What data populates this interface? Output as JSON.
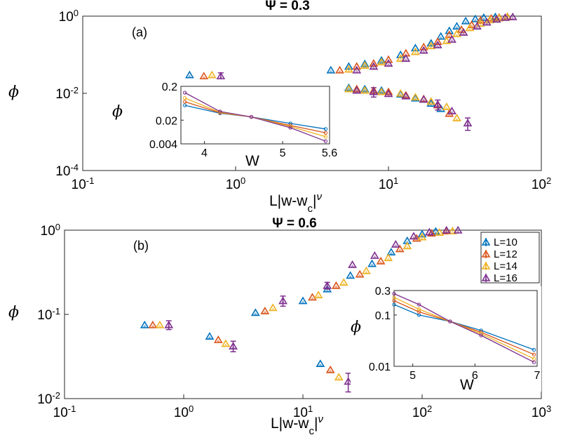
{
  "chart_data": [
    {
      "type": "scatter",
      "panel_label": "(a)",
      "title": "Ψ = 0.3",
      "xscale": "log",
      "yscale": "log",
      "xlim": [
        0.1,
        100
      ],
      "ylim": [
        0.0001,
        1
      ],
      "xticks": [
        "10-1",
        "100",
        "101",
        "102"
      ],
      "yticks": [
        "10-4",
        "10-2",
        "100"
      ],
      "xlabel": "L|w-wc|ν",
      "ylabel": "ϕ",
      "series": [
        {
          "name": "L=10",
          "color": "#0072BD",
          "points": [
            [
              0.5,
              0.03
            ],
            [
              4.2,
              0.04
            ],
            [
              5.5,
              0.05
            ],
            [
              7,
              0.058
            ],
            [
              9,
              0.072
            ],
            [
              12,
              0.1
            ],
            [
              15,
              0.15
            ],
            [
              19,
              0.2
            ],
            [
              22,
              0.3
            ],
            [
              25,
              0.42
            ],
            [
              28,
              0.55
            ],
            [
              32,
              0.75
            ],
            [
              37,
              0.85
            ],
            [
              42,
              0.92
            ],
            [
              50,
              0.96
            ],
            [
              4.2,
              0.016
            ],
            [
              5.5,
              0.014
            ],
            [
              7,
              0.013
            ],
            [
              9,
              0.012
            ],
            [
              12,
              0.0095
            ],
            [
              15,
              0.0075
            ],
            [
              19,
              0.0055
            ],
            [
              22,
              0.004
            ]
          ],
          "errors": []
        },
        {
          "name": "L=12",
          "color": "#D95319",
          "points": [
            [
              0.62,
              0.028
            ],
            [
              4.8,
              0.04
            ],
            [
              6.2,
              0.05
            ],
            [
              8,
              0.06
            ],
            [
              10,
              0.075
            ],
            [
              13,
              0.11
            ],
            [
              17,
              0.16
            ],
            [
              21,
              0.22
            ],
            [
              25,
              0.33
            ],
            [
              30,
              0.45
            ],
            [
              35,
              0.6
            ],
            [
              40,
              0.78
            ],
            [
              47,
              0.88
            ],
            [
              53,
              0.93
            ],
            [
              60,
              0.97
            ],
            [
              4.8,
              0.015
            ],
            [
              6.2,
              0.013
            ],
            [
              8,
              0.012
            ],
            [
              10,
              0.011
            ],
            [
              13,
              0.009
            ],
            [
              17,
              0.0072
            ],
            [
              21,
              0.005
            ],
            [
              25,
              0.003
            ]
          ],
          "errors": []
        },
        {
          "name": "L=14",
          "color": "#EDB120",
          "points": [
            [
              0.7,
              0.03
            ],
            [
              5.5,
              0.042
            ],
            [
              7,
              0.053
            ],
            [
              9,
              0.065
            ],
            [
              12,
              0.08
            ],
            [
              15,
              0.12
            ],
            [
              19,
              0.17
            ],
            [
              24,
              0.23
            ],
            [
              28,
              0.35
            ],
            [
              34,
              0.5
            ],
            [
              40,
              0.65
            ],
            [
              46,
              0.8
            ],
            [
              53,
              0.9
            ],
            [
              60,
              0.95
            ],
            [
              5.5,
              0.013
            ],
            [
              7,
              0.012
            ],
            [
              9,
              0.011
            ],
            [
              12,
              0.01
            ],
            [
              15,
              0.008
            ],
            [
              19,
              0.0062
            ],
            [
              24,
              0.0045
            ],
            [
              28,
              0.0023
            ]
          ],
          "errors": []
        },
        {
          "name": "L=16",
          "color": "#7E2F8E",
          "points": [
            [
              0.8,
              0.028
            ],
            [
              6.2,
              0.04
            ],
            [
              8,
              0.05
            ],
            [
              10,
              0.06
            ],
            [
              13,
              0.08
            ],
            [
              17,
              0.13
            ],
            [
              21,
              0.18
            ],
            [
              26,
              0.25
            ],
            [
              31,
              0.38
            ],
            [
              38,
              0.55
            ],
            [
              44,
              0.7
            ],
            [
              51,
              0.83
            ],
            [
              58,
              0.92
            ],
            [
              65,
              0.96
            ],
            [
              6.2,
              0.012
            ],
            [
              8,
              0.011
            ],
            [
              10,
              0.0098
            ],
            [
              13,
              0.0085
            ],
            [
              17,
              0.007
            ],
            [
              21,
              0.0052
            ],
            [
              26,
              0.0035
            ],
            [
              33,
              0.0017
            ]
          ],
          "errors": [
            [
              0.8,
              0.028,
              0.006
            ],
            [
              8,
              0.011,
              0.003
            ],
            [
              21,
              0.0052,
              0.0015
            ],
            [
              33,
              0.0017,
              0.0006
            ]
          ]
        }
      ],
      "inset": {
        "xlim": [
          3.7,
          5.6
        ],
        "ylim": [
          0.004,
          0.2
        ],
        "xticks": [
          "4",
          "5",
          "5.6"
        ],
        "yticks": [
          "0.004",
          "0.02",
          "0.2"
        ],
        "xlabel": "W",
        "ylabel": "ϕ",
        "series": [
          {
            "name": "L=10",
            "color": "#0072BD",
            "points": [
              [
                3.75,
                0.055
              ],
              [
                4.2,
                0.032
              ],
              [
                4.6,
                0.025
              ],
              [
                5.1,
                0.016
              ],
              [
                5.55,
                0.011
              ]
            ]
          },
          {
            "name": "L=12",
            "color": "#D95319",
            "points": [
              [
                3.75,
                0.07
              ],
              [
                4.2,
                0.033
              ],
              [
                4.6,
                0.025
              ],
              [
                5.1,
                0.014
              ],
              [
                5.55,
                0.0085
              ]
            ]
          },
          {
            "name": "L=14",
            "color": "#EDB120",
            "points": [
              [
                3.75,
                0.09
              ],
              [
                4.2,
                0.034
              ],
              [
                4.6,
                0.025
              ],
              [
                5.1,
                0.013
              ],
              [
                5.55,
                0.0065
              ]
            ]
          },
          {
            "name": "L=16",
            "color": "#7E2F8E",
            "points": [
              [
                3.75,
                0.13
              ],
              [
                4.2,
                0.036
              ],
              [
                4.6,
                0.025
              ],
              [
                5.1,
                0.012
              ],
              [
                5.55,
                0.0048
              ]
            ]
          }
        ]
      }
    },
    {
      "type": "scatter",
      "panel_label": "(b)",
      "title": "Ψ = 0.6",
      "xscale": "log",
      "yscale": "log",
      "xlim": [
        0.1,
        1000
      ],
      "ylim": [
        0.01,
        1
      ],
      "xticks": [
        "10-1",
        "100",
        "101",
        "102",
        "103"
      ],
      "yticks": [
        "10-2",
        "10-1",
        "100"
      ],
      "xlabel": "L|w-wc|ν",
      "ylabel": "ϕ",
      "legend": [
        "L=10",
        "L=12",
        "L=14",
        "L=16"
      ],
      "legend_position": "top-right",
      "series": [
        {
          "name": "L=10",
          "color": "#0072BD",
          "points": [
            [
              0.47,
              0.075
            ],
            [
              1.65,
              0.055
            ],
            [
              4,
              0.105
            ],
            [
              10,
              0.145
            ],
            [
              16,
              0.2
            ],
            [
              25,
              0.29
            ],
            [
              38,
              0.4
            ],
            [
              55,
              0.55
            ],
            [
              75,
              0.75
            ],
            [
              100,
              0.9
            ],
            [
              130,
              0.97
            ],
            [
              14,
              0.026
            ]
          ],
          "errors": []
        },
        {
          "name": "L=12",
          "color": "#D95319",
          "points": [
            [
              0.55,
              0.075
            ],
            [
              1.95,
              0.05
            ],
            [
              4.8,
              0.11
            ],
            [
              12,
              0.16
            ],
            [
              19,
              0.22
            ],
            [
              30,
              0.3
            ],
            [
              45,
              0.43
            ],
            [
              65,
              0.6
            ],
            [
              90,
              0.8
            ],
            [
              120,
              0.92
            ],
            [
              160,
              0.98
            ],
            [
              17,
              0.022
            ]
          ],
          "errors": []
        },
        {
          "name": "L=14",
          "color": "#EDB120",
          "points": [
            [
              0.63,
              0.075
            ],
            [
              2.25,
              0.045
            ],
            [
              5.6,
              0.12
            ],
            [
              13.5,
              0.17
            ],
            [
              22,
              0.24
            ],
            [
              34,
              0.33
            ],
            [
              52,
              0.47
            ],
            [
              75,
              0.65
            ],
            [
              100,
              0.83
            ],
            [
              140,
              0.94
            ],
            [
              180,
              0.98
            ],
            [
              20,
              0.018
            ]
          ],
          "errors": []
        },
        {
          "name": "L=16",
          "color": "#7E2F8E",
          "points": [
            [
              0.75,
              0.075
            ],
            [
              2.6,
              0.042
            ],
            [
              6.8,
              0.145
            ],
            [
              16,
              0.22
            ],
            [
              26,
              0.39
            ],
            [
              40,
              0.5
            ],
            [
              60,
              0.68
            ],
            [
              85,
              0.85
            ],
            [
              115,
              0.95
            ],
            [
              160,
              1.0
            ],
            [
              200,
              1.0
            ],
            [
              24,
              0.016
            ]
          ],
          "errors": [
            [
              0.75,
              0.075,
              0.009
            ],
            [
              2.6,
              0.042,
              0.006
            ],
            [
              6.8,
              0.145,
              0.02
            ],
            [
              16,
              0.22,
              0.02
            ],
            [
              24,
              0.016,
              0.004
            ]
          ]
        }
      ],
      "inset": {
        "xlim": [
          4.7,
          7.0
        ],
        "ylim": [
          0.01,
          0.3
        ],
        "xticks": [
          "5",
          "6",
          "7"
        ],
        "yticks": [
          "0.01",
          "0.1",
          "0.3"
        ],
        "xlabel": "W",
        "ylabel": "ϕ",
        "series": [
          {
            "name": "L=10",
            "color": "#0072BD",
            "points": [
              [
                4.7,
                0.16
              ],
              [
                5.1,
                0.1
              ],
              [
                5.6,
                0.075
              ],
              [
                6.1,
                0.05
              ],
              [
                6.95,
                0.021
              ]
            ]
          },
          {
            "name": "L=12",
            "color": "#D95319",
            "points": [
              [
                4.7,
                0.19
              ],
              [
                5.1,
                0.115
              ],
              [
                5.6,
                0.075
              ],
              [
                6.1,
                0.046
              ],
              [
                6.95,
                0.017
              ]
            ]
          },
          {
            "name": "L=14",
            "color": "#EDB120",
            "points": [
              [
                4.7,
                0.22
              ],
              [
                5.1,
                0.13
              ],
              [
                5.6,
                0.075
              ],
              [
                6.1,
                0.043
              ],
              [
                6.95,
                0.014
              ]
            ]
          },
          {
            "name": "L=16",
            "color": "#7E2F8E",
            "points": [
              [
                4.7,
                0.26
              ],
              [
                5.1,
                0.16
              ],
              [
                5.6,
                0.075
              ],
              [
                6.1,
                0.04
              ],
              [
                6.95,
                0.012
              ]
            ]
          }
        ]
      }
    }
  ]
}
